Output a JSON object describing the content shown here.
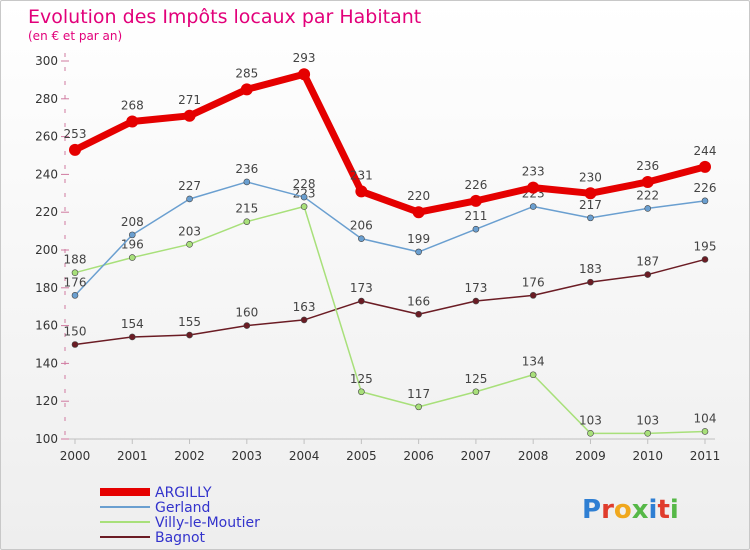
{
  "chart_data": {
    "type": "line",
    "title": "Evolution des Impôts locaux par Habitant",
    "subtitle": "(en € et par an)",
    "x": [
      "2000",
      "2001",
      "2002",
      "2003",
      "2004",
      "2005",
      "2006",
      "2007",
      "2008",
      "2009",
      "2010",
      "2011"
    ],
    "ylim": [
      100,
      300
    ],
    "yticks": [
      100,
      120,
      140,
      160,
      180,
      200,
      220,
      240,
      260,
      280,
      300
    ],
    "grid": false,
    "legend_position": "bottom-left",
    "series": [
      {
        "name": "ARGILLY",
        "color": "#e50000",
        "values": [
          253,
          268,
          271,
          285,
          293,
          231,
          220,
          226,
          233,
          230,
          236,
          244
        ]
      },
      {
        "name": "Gerland",
        "color": "#6a9fd0",
        "values": [
          176,
          208,
          227,
          236,
          228,
          206,
          199,
          211,
          223,
          217,
          222,
          226
        ]
      },
      {
        "name": "Villy-le-Moutier",
        "color": "#a8e07a",
        "values": [
          188,
          196,
          203,
          215,
          223,
          125,
          117,
          125,
          134,
          103,
          103,
          104
        ]
      },
      {
        "name": "Bagnot",
        "color": "#6b1c24",
        "values": [
          150,
          154,
          155,
          160,
          163,
          173,
          166,
          173,
          176,
          183,
          187,
          195
        ]
      }
    ]
  },
  "logo": {
    "text": "Proxiti"
  }
}
